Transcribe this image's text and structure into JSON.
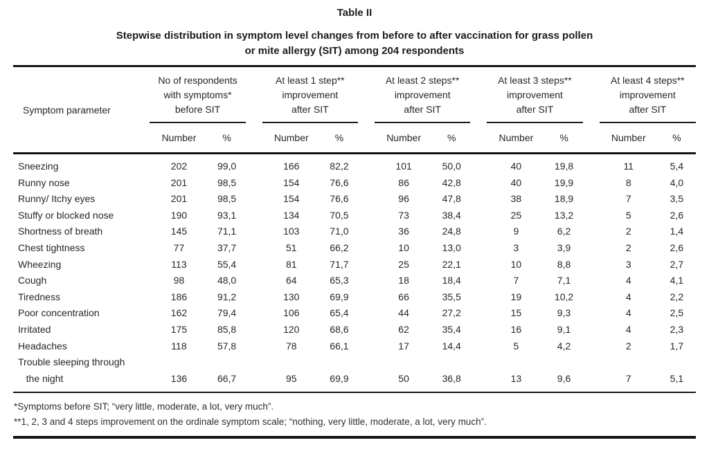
{
  "page": {
    "title": "Table II",
    "subtitle": "Stepwise distribution in symptom level changes from before to after vaccination for grass pollen\nor mite allergy (SIT) among 204 respondents"
  },
  "table": {
    "row_header_label": "Symptom parameter",
    "group_headers": [
      "No of respondents\nwith symptoms*\nbefore SIT",
      "At least 1 step**\nimprovement\nafter SIT",
      "At least 2 steps**\nimprovement\nafter SIT",
      "At least 3 steps**\nimprovement\nafter SIT",
      "At least 4 steps**\nimprovement\nafter SIT"
    ],
    "sub_headers": {
      "number": "Number",
      "percent": "%"
    },
    "rows": [
      {
        "symptom": "Sneezing",
        "values": [
          "202",
          "99,0",
          "166",
          "82,2",
          "101",
          "50,0",
          "40",
          "19,8",
          "11",
          "5,4"
        ]
      },
      {
        "symptom": "Runny nose",
        "values": [
          "201",
          "98,5",
          "154",
          "76,6",
          "86",
          "42,8",
          "40",
          "19,9",
          "8",
          "4,0"
        ]
      },
      {
        "symptom": "Runny/ Itchy eyes",
        "values": [
          "201",
          "98,5",
          "154",
          "76,6",
          "96",
          "47,8",
          "38",
          "18,9",
          "7",
          "3,5"
        ]
      },
      {
        "symptom": "Stuffy or blocked nose",
        "values": [
          "190",
          "93,1",
          "134",
          "70,5",
          "73",
          "38,4",
          "25",
          "13,2",
          "5",
          "2,6"
        ]
      },
      {
        "symptom": "Shortness of breath",
        "values": [
          "145",
          "71,1",
          "103",
          "71,0",
          "36",
          "24,8",
          "9",
          "6,2",
          "2",
          "1,4"
        ]
      },
      {
        "symptom": "Chest tightness",
        "values": [
          "77",
          "37,7",
          "51",
          "66,2",
          "10",
          "13,0",
          "3",
          "3,9",
          "2",
          "2,6"
        ]
      },
      {
        "symptom": "Wheezing",
        "values": [
          "113",
          "55,4",
          "81",
          "71,7",
          "25",
          "22,1",
          "10",
          "8,8",
          "3",
          "2,7"
        ]
      },
      {
        "symptom": "Cough",
        "values": [
          "98",
          "48,0",
          "64",
          "65,3",
          "18",
          "18,4",
          "7",
          "7,1",
          "4",
          "4,1"
        ]
      },
      {
        "symptom": "Tiredness",
        "values": [
          "186",
          "91,2",
          "130",
          "69,9",
          "66",
          "35,5",
          "19",
          "10,2",
          "4",
          "2,2"
        ]
      },
      {
        "symptom": "Poor concentration",
        "values": [
          "162",
          "79,4",
          "106",
          "65,4",
          "44",
          "27,2",
          "15",
          "9,3",
          "4",
          "2,5"
        ]
      },
      {
        "symptom": "Irritated",
        "values": [
          "175",
          "85,8",
          "120",
          "68,6",
          "62",
          "35,4",
          "16",
          "9,1",
          "4",
          "2,3"
        ]
      },
      {
        "symptom": "Headaches",
        "values": [
          "118",
          "57,8",
          "78",
          "66,1",
          "17",
          "14,4",
          "5",
          "4,2",
          "2",
          "1,7"
        ]
      },
      {
        "symptom": "Trouble sleeping through\n   the night",
        "values": [
          "136",
          "66,7",
          "95",
          "69,9",
          "50",
          "36,8",
          "13",
          "9,6",
          "7",
          "5,1"
        ]
      }
    ]
  },
  "footnotes": [
    "*Symptoms before SIT; “very little, moderate, a lot, very much”.",
    "**1, 2, 3 and 4 steps improvement on the ordinale symptom scale; “nothing, very little, moderate, a lot, very much”."
  ]
}
